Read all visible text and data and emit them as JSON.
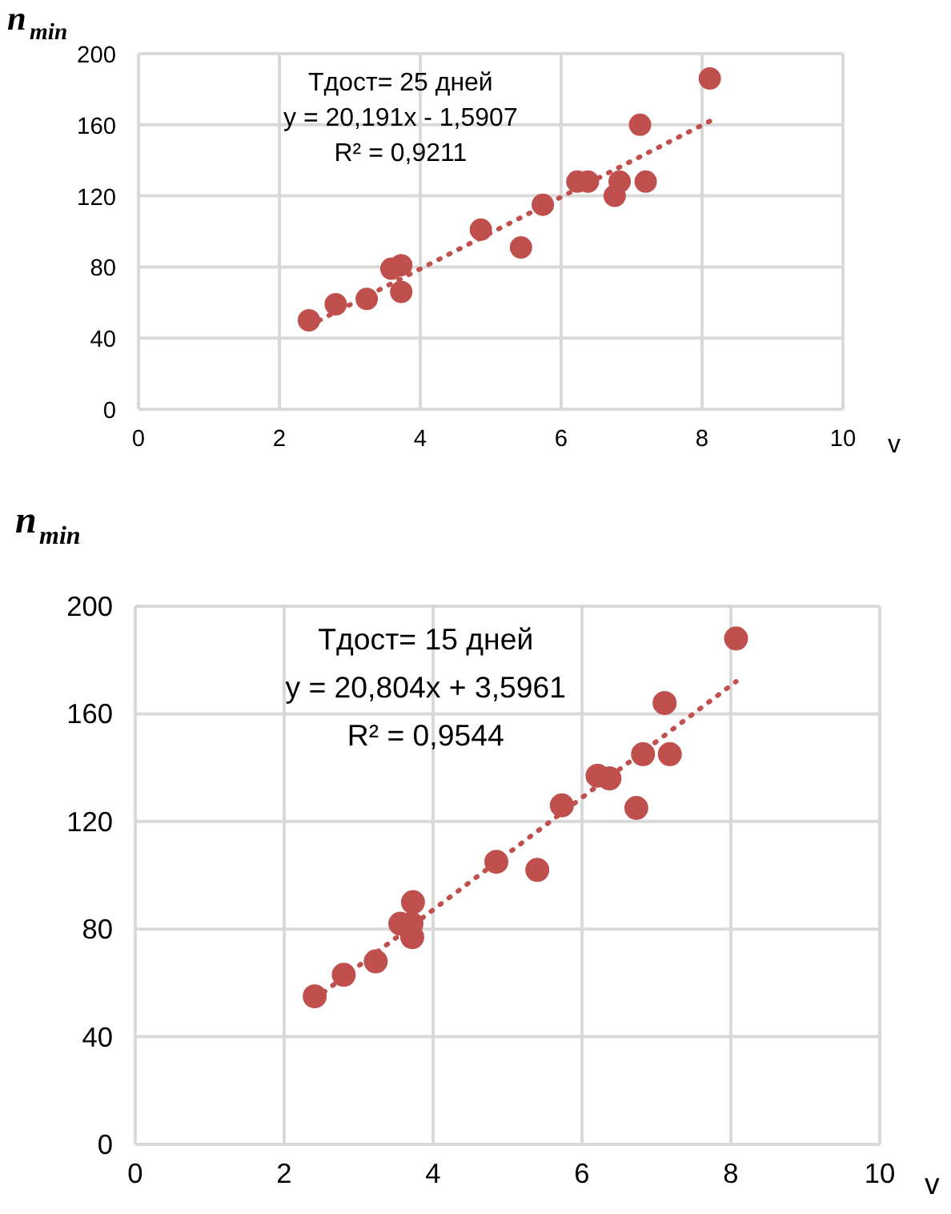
{
  "chart_data": [
    {
      "type": "scatter",
      "ylabel": "n$_{min}$",
      "xlabel": "v",
      "annotations": [
        "Тдост= 25 дней",
        "y = 20,191x - 1,5907",
        "R² = 0,9211"
      ],
      "xlim": [
        0,
        10
      ],
      "ylim": [
        0,
        200
      ],
      "xticks": [
        0,
        2,
        4,
        6,
        8,
        10
      ],
      "yticks": [
        0,
        40,
        80,
        120,
        160,
        200
      ],
      "grid": true,
      "marker": "circle",
      "series": [
        {
          "color": "#c0504d",
          "x": [
            2.42,
            2.8,
            3.24,
            3.59,
            3.73,
            3.73,
            4.86,
            5.43,
            5.74,
            6.23,
            6.38,
            6.76,
            6.83,
            7.12,
            7.2,
            8.11
          ],
          "values": [
            50,
            59,
            62,
            79,
            81,
            66,
            101,
            91,
            115,
            128,
            128,
            120,
            128,
            160,
            128,
            186
          ]
        },
        {
          "type": "line",
          "line_style": "dotted",
          "marker": "none",
          "color": "#c0504d",
          "x": [
            2.42,
            8.11
          ],
          "values": [
            47,
            162
          ]
        }
      ]
    },
    {
      "type": "scatter",
      "ylabel": "n$_{min}$",
      "xlabel": "v",
      "annotations": [
        "Тдост= 15 дней",
        "y = 20,804x + 3,5961",
        "R² = 0,9544"
      ],
      "xlim": [
        0,
        10
      ],
      "ylim": [
        0,
        200
      ],
      "xticks": [
        0,
        2,
        4,
        6,
        8,
        10
      ],
      "yticks": [
        0,
        40,
        80,
        120,
        160,
        200
      ],
      "grid": true,
      "marker": "circle",
      "series": [
        {
          "color": "#c0504d",
          "x": [
            2.41,
            2.8,
            3.23,
            3.56,
            3.71,
            3.72,
            3.73,
            4.85,
            5.4,
            5.73,
            6.21,
            6.37,
            6.73,
            6.82,
            7.11,
            7.18,
            8.07
          ],
          "values": [
            55,
            63,
            68,
            82,
            82,
            77,
            90,
            105,
            102,
            126,
            137,
            136,
            125,
            145,
            164,
            145,
            188
          ]
        },
        {
          "type": "line",
          "line_style": "dotted",
          "marker": "none",
          "color": "#c0504d",
          "x": [
            2.41,
            8.07
          ],
          "values": [
            54,
            172
          ]
        }
      ]
    }
  ]
}
